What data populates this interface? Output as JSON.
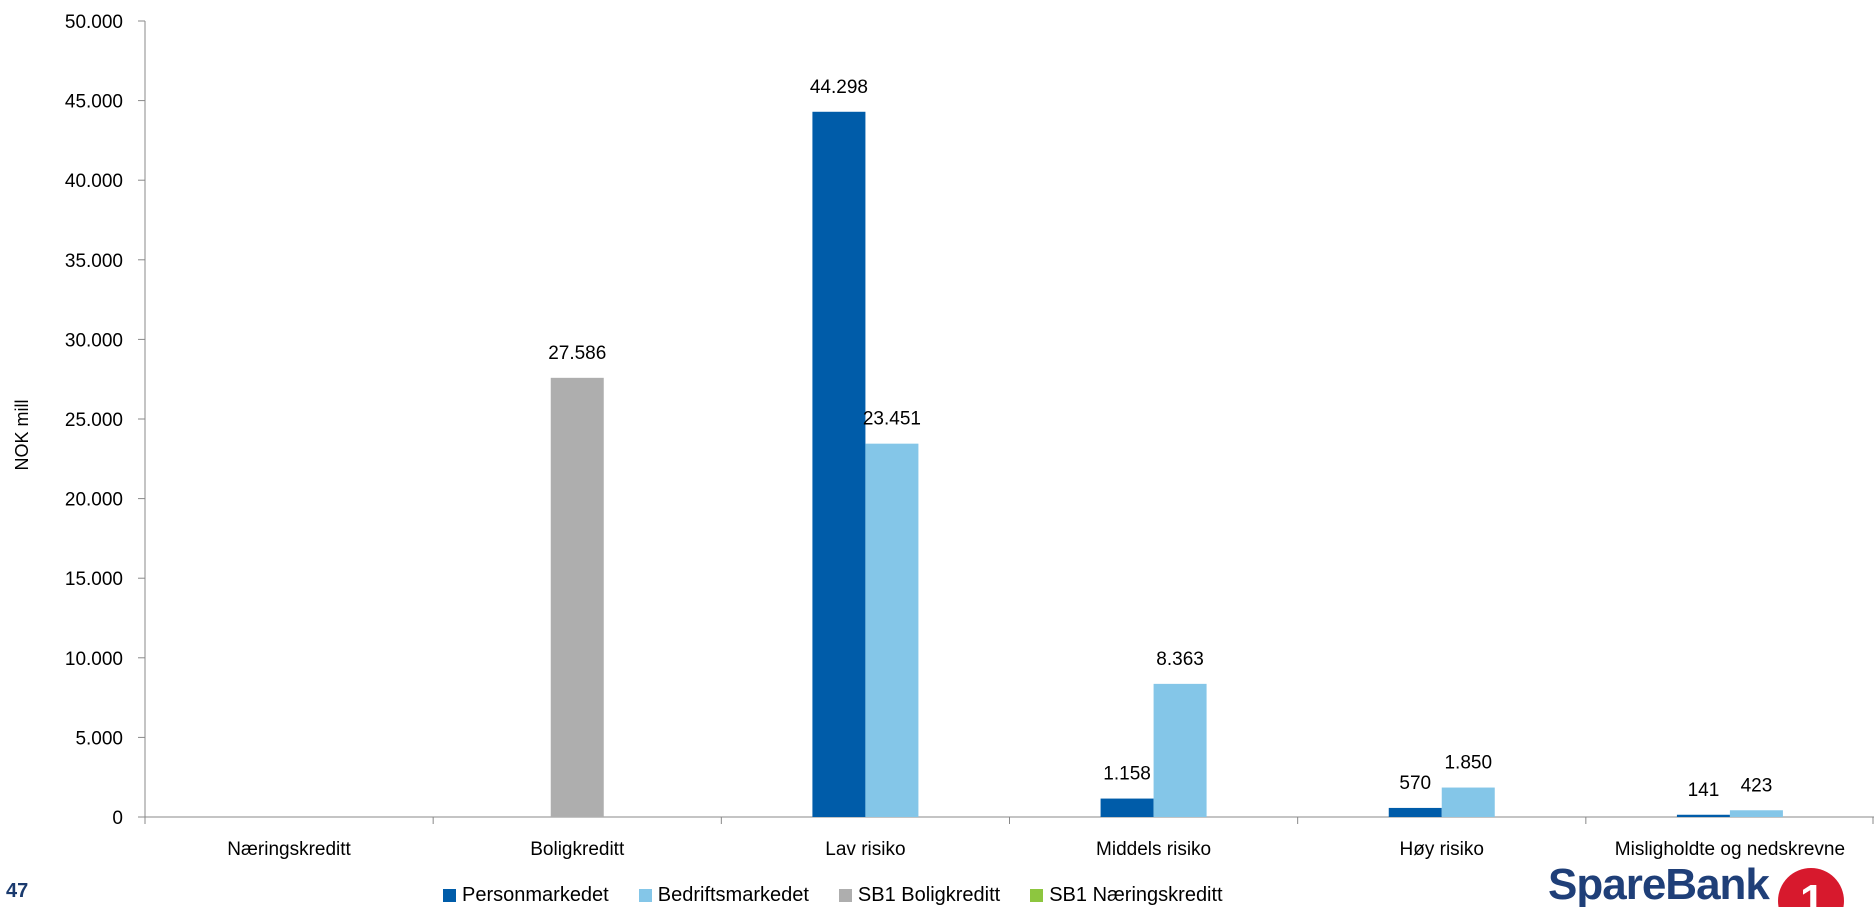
{
  "page_number": "47",
  "logo": {
    "text": "SpareBank",
    "mark": "1"
  },
  "colors": {
    "Personmarkedet": "#005ca9",
    "Bedriftsmarkedet": "#84c6e8",
    "SB1 Boligkreditt": "#aeaeae",
    "SB1 Næringskreditt": "#8dc63f"
  },
  "chart_data": {
    "type": "bar",
    "title": "",
    "xlabel": "",
    "ylabel": "NOK mill",
    "ylim": [
      0,
      50000
    ],
    "yticks": [
      0,
      5000,
      10000,
      15000,
      20000,
      25000,
      30000,
      35000,
      40000,
      45000,
      50000
    ],
    "ytick_labels": [
      "0",
      "5.000",
      "10.000",
      "15.000",
      "20.000",
      "25.000",
      "30.000",
      "35.000",
      "40.000",
      "45.000",
      "50.000"
    ],
    "categories": [
      "Næringskreditt",
      "Boligkreditt",
      "Lav risiko",
      "Middels risiko",
      "Høy risiko",
      "Misligholdte og nedskrevne"
    ],
    "legend_position": "bottom",
    "series": [
      {
        "name": "Personmarkedet",
        "values": [
          null,
          null,
          44298,
          1158,
          570,
          141
        ],
        "labels": [
          null,
          null,
          "44.298",
          "1.158",
          "570",
          "141"
        ]
      },
      {
        "name": "Bedriftsmarkedet",
        "values": [
          null,
          null,
          23451,
          8363,
          1850,
          423
        ],
        "labels": [
          null,
          null,
          "23.451",
          "8.363",
          "1.850",
          "423"
        ]
      },
      {
        "name": "SB1 Boligkreditt",
        "values": [
          null,
          27586,
          null,
          null,
          null,
          null
        ],
        "labels": [
          null,
          "27.586",
          null,
          null,
          null,
          null
        ]
      },
      {
        "name": "SB1 Næringskreditt",
        "values": [
          0,
          null,
          null,
          null,
          null,
          null
        ],
        "labels": [
          null,
          null,
          null,
          null,
          null,
          null
        ]
      }
    ]
  }
}
